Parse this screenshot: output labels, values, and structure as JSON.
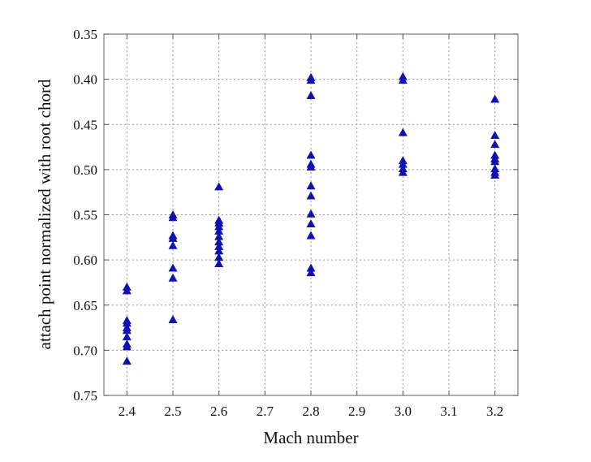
{
  "chart_data": {
    "type": "scatter",
    "title": "",
    "xlabel": "Mach number",
    "ylabel": "attach point normalized with root chord",
    "xlim": [
      2.35,
      3.25
    ],
    "ylim": [
      0.35,
      0.75
    ],
    "y_inverted": true,
    "x_ticks": [
      "2.4",
      "2.5",
      "2.6",
      "2.7",
      "2.8",
      "2.9",
      "3.0",
      "3.1",
      "3.2"
    ],
    "y_ticks": [
      "0.35",
      "0.40",
      "0.45",
      "0.50",
      "0.55",
      "0.60",
      "0.65",
      "0.70",
      "0.75"
    ],
    "grid": true,
    "marker": "triangle",
    "marker_color": "#1010b0",
    "series": [
      {
        "points": [
          [
            2.4,
            0.63
          ],
          [
            2.4,
            0.634
          ],
          [
            2.4,
            0.667
          ],
          [
            2.4,
            0.67
          ],
          [
            2.4,
            0.675
          ],
          [
            2.4,
            0.678
          ],
          [
            2.4,
            0.685
          ],
          [
            2.4,
            0.693
          ],
          [
            2.4,
            0.696
          ],
          [
            2.4,
            0.712
          ],
          [
            2.5,
            0.55
          ],
          [
            2.5,
            0.553
          ],
          [
            2.5,
            0.573
          ],
          [
            2.5,
            0.576
          ],
          [
            2.5,
            0.584
          ],
          [
            2.5,
            0.609
          ],
          [
            2.5,
            0.62
          ],
          [
            2.5,
            0.666
          ],
          [
            2.6,
            0.519
          ],
          [
            2.6,
            0.556
          ],
          [
            2.6,
            0.559
          ],
          [
            2.6,
            0.563
          ],
          [
            2.6,
            0.568
          ],
          [
            2.6,
            0.574
          ],
          [
            2.6,
            0.58
          ],
          [
            2.6,
            0.585
          ],
          [
            2.6,
            0.59
          ],
          [
            2.6,
            0.597
          ],
          [
            2.6,
            0.604
          ],
          [
            2.8,
            0.398
          ],
          [
            2.8,
            0.401
          ],
          [
            2.8,
            0.418
          ],
          [
            2.8,
            0.484
          ],
          [
            2.8,
            0.494
          ],
          [
            2.8,
            0.497
          ],
          [
            2.8,
            0.518
          ],
          [
            2.8,
            0.529
          ],
          [
            2.8,
            0.549
          ],
          [
            2.8,
            0.56
          ],
          [
            2.8,
            0.573
          ],
          [
            2.8,
            0.609
          ],
          [
            2.8,
            0.614
          ],
          [
            3.0,
            0.397
          ],
          [
            3.0,
            0.401
          ],
          [
            3.0,
            0.459
          ],
          [
            3.0,
            0.49
          ],
          [
            3.0,
            0.494
          ],
          [
            3.0,
            0.499
          ],
          [
            3.0,
            0.503
          ],
          [
            3.2,
            0.422
          ],
          [
            3.2,
            0.462
          ],
          [
            3.2,
            0.472
          ],
          [
            3.2,
            0.484
          ],
          [
            3.2,
            0.488
          ],
          [
            3.2,
            0.491
          ],
          [
            3.2,
            0.499
          ],
          [
            3.2,
            0.503
          ],
          [
            3.2,
            0.506
          ]
        ]
      }
    ]
  }
}
